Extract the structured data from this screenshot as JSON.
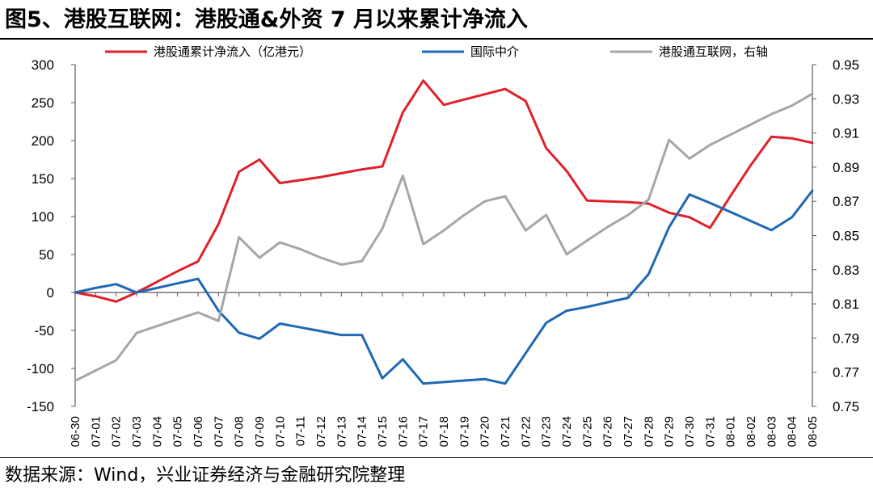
{
  "title": "图5、港股互联网：港股通&外资 7 月以来累计净流入",
  "source": "数据来源：Wind，兴业证券经济与金融研究院整理",
  "chart_data": {
    "type": "line",
    "x": [
      "06-30",
      "07-01",
      "07-02",
      "07-03",
      "07-04",
      "07-05",
      "07-06",
      "07-07",
      "07-08",
      "07-09",
      "07-10",
      "07-11",
      "07-12",
      "07-13",
      "07-14",
      "07-15",
      "07-16",
      "07-17",
      "07-18",
      "07-19",
      "07-20",
      "07-21",
      "07-22",
      "07-23",
      "07-24",
      "07-25",
      "07-26",
      "07-27",
      "07-28",
      "07-29",
      "07-30",
      "07-31",
      "08-01",
      "08-02",
      "08-03",
      "08-04",
      "08-05"
    ],
    "left_axis": {
      "ylim": [
        -150,
        300
      ],
      "ticks": [
        300,
        250,
        200,
        150,
        100,
        50,
        0,
        -50,
        -100,
        -150
      ]
    },
    "right_axis": {
      "ylim": [
        0.75,
        0.95
      ],
      "ticks": [
        "0.95",
        "0.93",
        "0.91",
        "0.89",
        "0.87",
        "0.85",
        "0.83",
        "0.81",
        "0.79",
        "0.77",
        "0.75"
      ]
    },
    "legend_position": "top",
    "series": [
      {
        "name": "港股通累计净流入（亿港元）",
        "axis": "left",
        "color": "#e0202a",
        "values": [
          0,
          -5,
          -12,
          0,
          14,
          28,
          41,
          90,
          159,
          175,
          144,
          148,
          152,
          157,
          162,
          166,
          237,
          279,
          247,
          254,
          261,
          268,
          252,
          190,
          160,
          121,
          120,
          119,
          117,
          105,
          99,
          85,
          127,
          168,
          205,
          203,
          197
        ]
      },
      {
        "name": "国际中介",
        "axis": "left",
        "color": "#1f68b5",
        "values": [
          0,
          6,
          11,
          0,
          6,
          12,
          18,
          -24,
          -53,
          -61,
          -41,
          -46,
          -51,
          -56,
          -56,
          -113,
          -88,
          -120,
          -118,
          -116,
          -114,
          -120,
          -80,
          -40,
          -24,
          -19,
          -13,
          -7,
          24,
          86,
          129,
          118,
          106,
          94,
          82,
          99,
          134
        ]
      },
      {
        "name": "港股通互联网，右轴",
        "axis": "right",
        "color": "#a6a6a6",
        "values": [
          0.765,
          0.771,
          0.777,
          0.793,
          0.797,
          0.801,
          0.805,
          0.8,
          0.849,
          0.837,
          0.846,
          0.842,
          0.837,
          0.833,
          0.835,
          0.854,
          0.885,
          0.845,
          0.853,
          0.862,
          0.87,
          0.873,
          0.853,
          0.862,
          0.839,
          0.847,
          0.855,
          0.862,
          0.871,
          0.906,
          0.895,
          0.903,
          0.909,
          0.915,
          0.921,
          0.926,
          0.933
        ]
      }
    ]
  }
}
